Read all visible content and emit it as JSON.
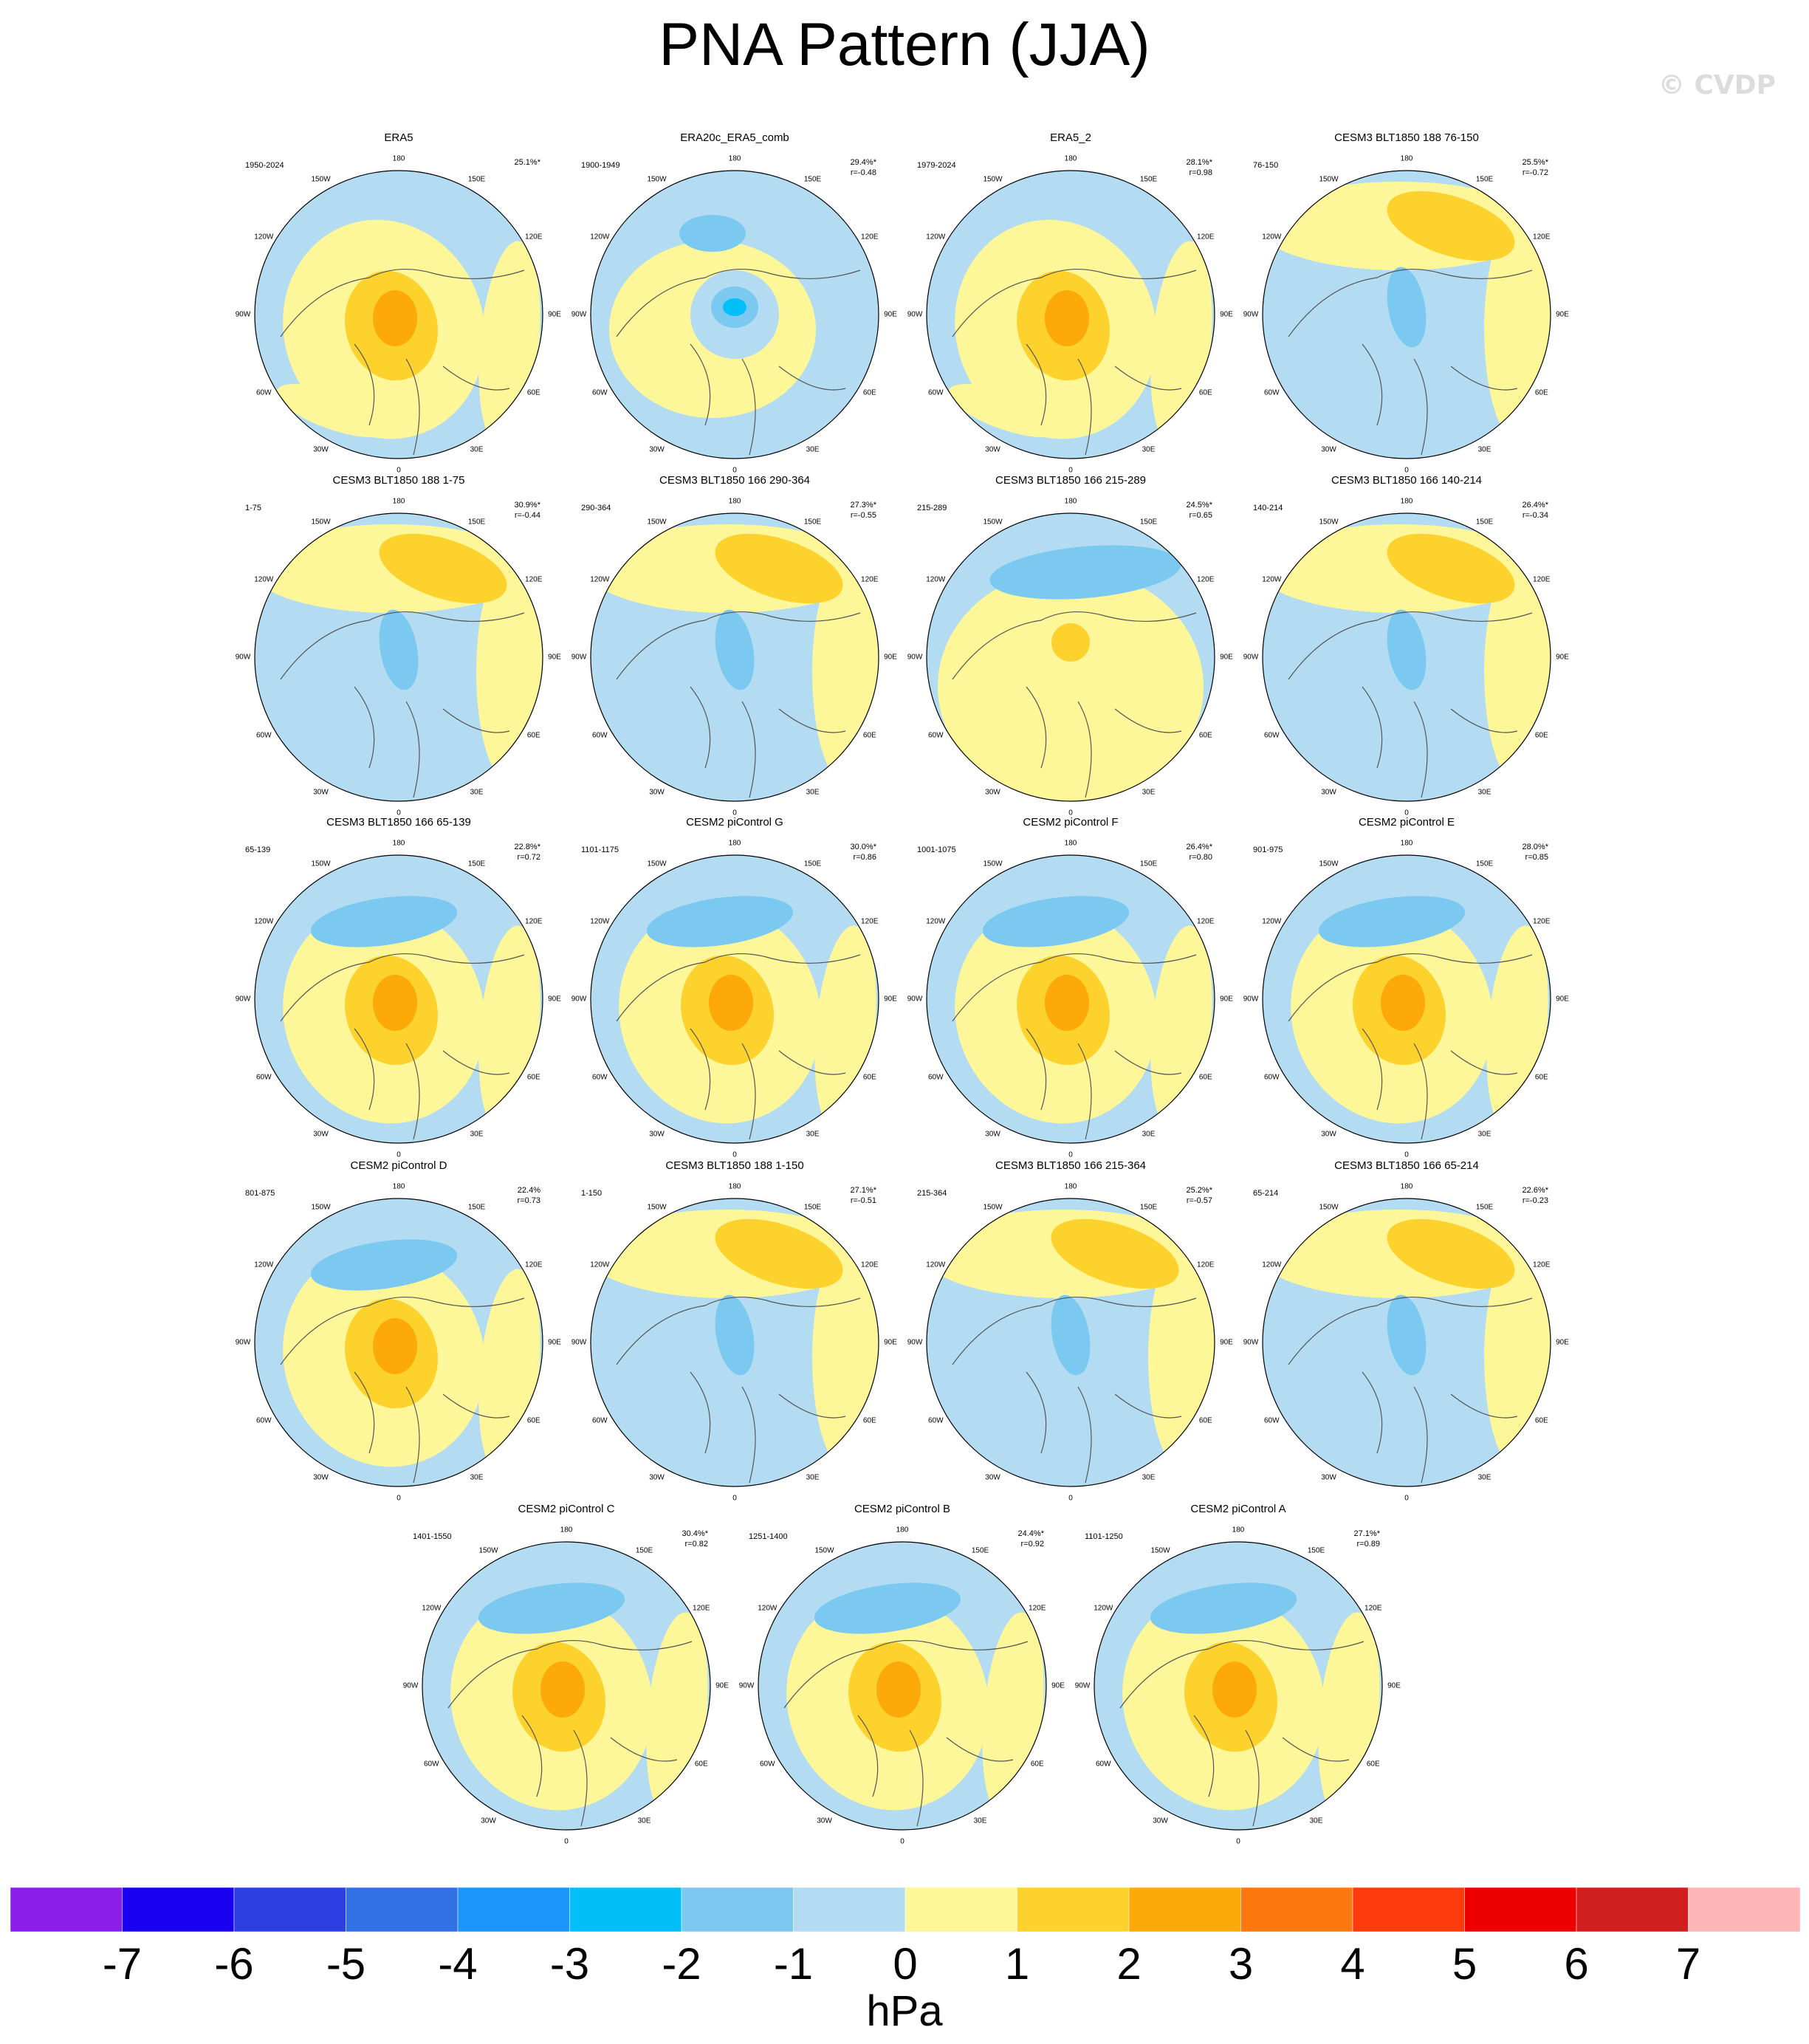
{
  "title": "PNA Pattern (JJA)",
  "watermark": "© CVDP",
  "colorbar": {
    "unit": "hPa",
    "labels": [
      "-7",
      "-6",
      "-5",
      "-4",
      "-3",
      "-2",
      "-1",
      "0",
      "1",
      "2",
      "3",
      "4",
      "5",
      "6",
      "7"
    ],
    "colors": [
      "#8a1fe8",
      "#1a00f0",
      "#2c3fe3",
      "#3270e6",
      "#1b96fb",
      "#02c0f7",
      "#7bc9f0",
      "#b3dcf2",
      "#fdf79a",
      "#fdd22d",
      "#fda90a",
      "#fd780e",
      "#fe3c0b",
      "#ee0000",
      "#d11e1e",
      "#ffb6b6"
    ]
  },
  "lon_labels": [
    "180",
    "150E",
    "120E",
    "90E",
    "60E",
    "30E",
    "0",
    "30W",
    "60W",
    "90W",
    "120W",
    "150W"
  ],
  "panels": [
    {
      "name": "ERA5",
      "years": "1950-2024",
      "pct": "25.1%*",
      "r": "",
      "pattern": "obs"
    },
    {
      "name": "ERA20c_ERA5_comb",
      "years": "1900-1949",
      "pct": "29.4%*",
      "r": "r=-0.48",
      "pattern": "neg"
    },
    {
      "name": "ERA5_2",
      "years": "1979-2024",
      "pct": "28.1%*",
      "r": "r=0.98",
      "pattern": "obs"
    },
    {
      "name": "CESM3 BLT1850 188 76-150",
      "years": "76-150",
      "pct": "25.5%*",
      "r": "r=-0.72",
      "pattern": "pac"
    },
    {
      "name": "CESM3 BLT1850 188 1-75",
      "years": "1-75",
      "pct": "30.9%*",
      "r": "r=-0.44",
      "pattern": "pac"
    },
    {
      "name": "CESM3 BLT1850 166 290-364",
      "years": "290-364",
      "pct": "27.3%*",
      "r": "r=-0.55",
      "pattern": "pac"
    },
    {
      "name": "CESM3 BLT1850 166 215-289",
      "years": "215-289",
      "pct": "24.5%*",
      "r": "r=0.65",
      "pattern": "ring"
    },
    {
      "name": "CESM3 BLT1850 166 140-214",
      "years": "140-214",
      "pct": "26.4%*",
      "r": "r=-0.34",
      "pattern": "pac"
    },
    {
      "name": "CESM3 BLT1850 166 65-139",
      "years": "65-139",
      "pct": "22.8%*",
      "r": "r=0.72",
      "pattern": "pna"
    },
    {
      "name": "CESM2 piControl G",
      "years": "1101-1175",
      "pct": "30.0%*",
      "r": "r=0.86",
      "pattern": "pna"
    },
    {
      "name": "CESM2 piControl F",
      "years": "1001-1075",
      "pct": "26.4%*",
      "r": "r=0.80",
      "pattern": "pna"
    },
    {
      "name": "CESM2 piControl E",
      "years": "901-975",
      "pct": "28.0%*",
      "r": "r=0.85",
      "pattern": "pna"
    },
    {
      "name": "CESM2 piControl D",
      "years": "801-875",
      "pct": "22.4%",
      "r": "r=0.73",
      "pattern": "pna"
    },
    {
      "name": "CESM3 BLT1850 188 1-150",
      "years": "1-150",
      "pct": "27.1%*",
      "r": "r=-0.51",
      "pattern": "pac"
    },
    {
      "name": "CESM3 BLT1850 166 215-364",
      "years": "215-364",
      "pct": "25.2%*",
      "r": "r=-0.57",
      "pattern": "pac"
    },
    {
      "name": "CESM3 BLT1850 166 65-214",
      "years": "65-214",
      "pct": "22.6%*",
      "r": "r=-0.23",
      "pattern": "pac"
    },
    {
      "name": "CESM2 piControl C",
      "years": "1401-1550",
      "pct": "30.4%*",
      "r": "r=0.82",
      "pattern": "pna"
    },
    {
      "name": "CESM2 piControl B",
      "years": "1251-1400",
      "pct": "24.4%*",
      "r": "r=0.92",
      "pattern": "pna"
    },
    {
      "name": "CESM2 piControl A",
      "years": "1101-1250",
      "pct": "27.1%*",
      "r": "r=0.89",
      "pattern": "pna"
    }
  ]
}
